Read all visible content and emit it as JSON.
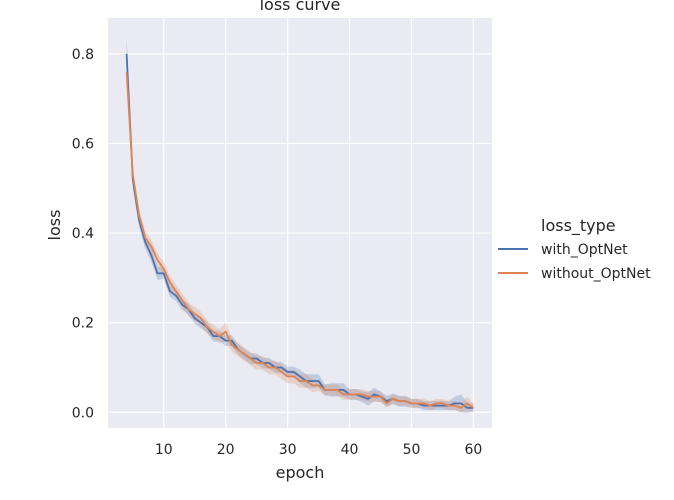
{
  "chart_data": {
    "type": "line",
    "title": "loss curve",
    "xlabel": "epoch",
    "ylabel": "loss",
    "xlim": [
      1,
      63
    ],
    "ylim": [
      -0.035,
      0.88
    ],
    "x_ticks": [
      10,
      20,
      30,
      40,
      50,
      60
    ],
    "y_ticks": [
      0.0,
      0.2,
      0.4,
      0.6,
      0.8
    ],
    "x_tick_labels": [
      "10",
      "20",
      "30",
      "40",
      "50",
      "60"
    ],
    "y_tick_labels": [
      "0.0",
      "0.2",
      "0.4",
      "0.6",
      "0.8"
    ],
    "grid": true,
    "legend": {
      "title": "loss_type",
      "placement": "right"
    },
    "x": [
      4,
      5,
      6,
      7,
      8,
      9,
      10,
      11,
      12,
      13,
      14,
      15,
      16,
      17,
      18,
      19,
      20,
      21,
      22,
      23,
      24,
      25,
      26,
      27,
      28,
      29,
      30,
      31,
      32,
      33,
      34,
      35,
      36,
      37,
      38,
      39,
      40,
      41,
      42,
      43,
      44,
      45,
      46,
      47,
      48,
      49,
      50,
      51,
      52,
      53,
      54,
      55,
      56,
      57,
      58,
      59,
      60
    ],
    "series": [
      {
        "name": "with_OptNet",
        "color": "#4c72b0",
        "values": [
          0.8,
          0.52,
          0.43,
          0.38,
          0.35,
          0.31,
          0.31,
          0.27,
          0.26,
          0.24,
          0.23,
          0.21,
          0.2,
          0.19,
          0.17,
          0.17,
          0.16,
          0.16,
          0.14,
          0.13,
          0.12,
          0.12,
          0.11,
          0.11,
          0.1,
          0.1,
          0.09,
          0.09,
          0.08,
          0.07,
          0.07,
          0.07,
          0.05,
          0.05,
          0.05,
          0.05,
          0.04,
          0.04,
          0.035,
          0.03,
          0.04,
          0.035,
          0.025,
          0.03,
          0.025,
          0.025,
          0.02,
          0.02,
          0.015,
          0.015,
          0.015,
          0.015,
          0.015,
          0.02,
          0.02,
          0.01,
          0.01
        ],
        "band": [
          0.04,
          0.02,
          0.015,
          0.015,
          0.015,
          0.015,
          0.012,
          0.012,
          0.012,
          0.012,
          0.012,
          0.012,
          0.012,
          0.012,
          0.012,
          0.012,
          0.012,
          0.012,
          0.012,
          0.012,
          0.012,
          0.012,
          0.012,
          0.012,
          0.012,
          0.012,
          0.012,
          0.012,
          0.015,
          0.015,
          0.015,
          0.015,
          0.012,
          0.015,
          0.015,
          0.015,
          0.012,
          0.012,
          0.012,
          0.015,
          0.015,
          0.012,
          0.012,
          0.012,
          0.012,
          0.012,
          0.01,
          0.01,
          0.01,
          0.01,
          0.01,
          0.01,
          0.01,
          0.015,
          0.02,
          0.012,
          0.008
        ]
      },
      {
        "name": "without_OptNet",
        "color": "#dd8452",
        "values": [
          0.76,
          0.53,
          0.44,
          0.39,
          0.37,
          0.34,
          0.32,
          0.29,
          0.27,
          0.25,
          0.23,
          0.22,
          0.21,
          0.19,
          0.18,
          0.17,
          0.18,
          0.15,
          0.14,
          0.13,
          0.12,
          0.11,
          0.11,
          0.1,
          0.1,
          0.09,
          0.08,
          0.08,
          0.07,
          0.07,
          0.06,
          0.06,
          0.05,
          0.05,
          0.05,
          0.04,
          0.04,
          0.04,
          0.04,
          0.035,
          0.035,
          0.035,
          0.02,
          0.03,
          0.025,
          0.025,
          0.02,
          0.02,
          0.02,
          0.015,
          0.02,
          0.02,
          0.015,
          0.015,
          0.01,
          0.02,
          0.01
        ],
        "band": [
          0.03,
          0.02,
          0.015,
          0.015,
          0.015,
          0.015,
          0.015,
          0.015,
          0.015,
          0.015,
          0.015,
          0.015,
          0.015,
          0.015,
          0.015,
          0.015,
          0.02,
          0.015,
          0.015,
          0.015,
          0.015,
          0.015,
          0.015,
          0.015,
          0.015,
          0.015,
          0.015,
          0.015,
          0.015,
          0.015,
          0.015,
          0.012,
          0.012,
          0.012,
          0.012,
          0.012,
          0.012,
          0.012,
          0.012,
          0.012,
          0.012,
          0.012,
          0.01,
          0.01,
          0.01,
          0.01,
          0.01,
          0.01,
          0.01,
          0.01,
          0.01,
          0.01,
          0.01,
          0.01,
          0.01,
          0.015,
          0.01
        ]
      }
    ]
  }
}
